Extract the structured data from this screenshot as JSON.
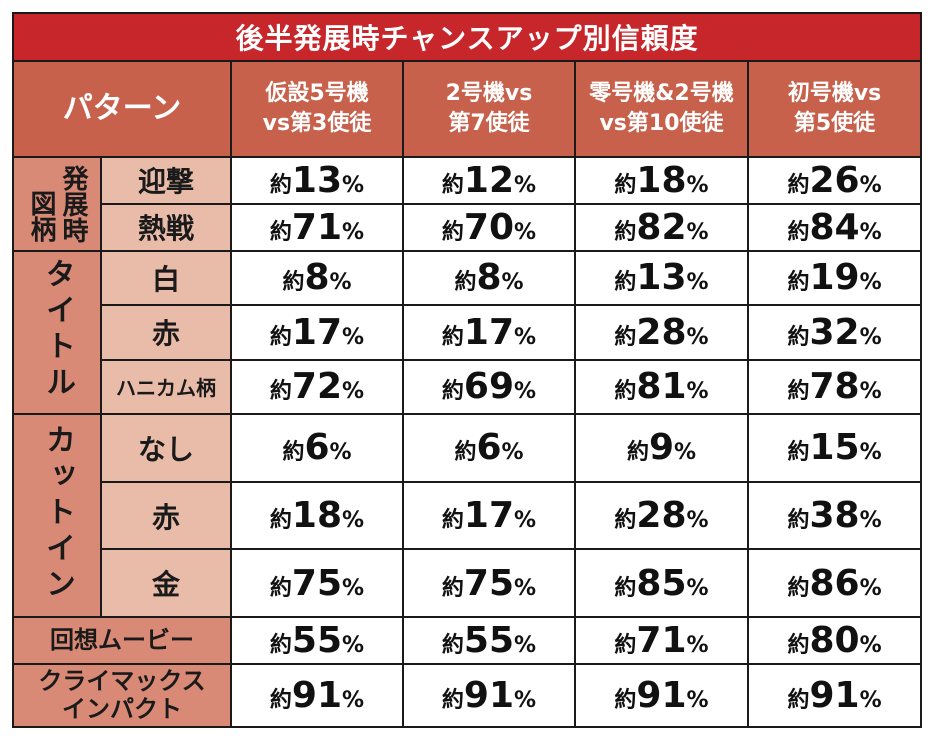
{
  "title": "後半発展時チャンスアップ別信頼度",
  "header": {
    "pattern": "パターン",
    "columns": [
      [
        "仮設5号機",
        "vs第3使徒"
      ],
      [
        "2号機vs",
        "第7使徒"
      ],
      [
        "零号機&2号機",
        "vs第10使徒"
      ],
      [
        "初号機vs",
        "第5使徒"
      ]
    ]
  },
  "groups": {
    "zugara_left": "図柄",
    "zugara_right": "発展時",
    "title": "タイトル",
    "cutin": "カットイン"
  },
  "rows": [
    {
      "label": "迎撃",
      "values": [
        "13",
        "12",
        "18",
        "26"
      ]
    },
    {
      "label": "熱戦",
      "values": [
        "71",
        "70",
        "82",
        "84"
      ]
    },
    {
      "label": "白",
      "values": [
        "8",
        "8",
        "13",
        "19"
      ]
    },
    {
      "label": "赤",
      "values": [
        "17",
        "17",
        "28",
        "32"
      ]
    },
    {
      "label": "ハニカム柄",
      "values": [
        "72",
        "69",
        "81",
        "78"
      ]
    },
    {
      "label": "なし",
      "values": [
        "6",
        "6",
        "9",
        "15"
      ]
    },
    {
      "label": "赤",
      "values": [
        "18",
        "17",
        "28",
        "38"
      ]
    },
    {
      "label": "金",
      "values": [
        "75",
        "75",
        "85",
        "86"
      ]
    },
    {
      "label": "回想ムービー",
      "values": [
        "55",
        "55",
        "71",
        "80"
      ]
    },
    {
      "label_lines": [
        "クライマックス",
        "インパクト"
      ],
      "values": [
        "91",
        "91",
        "91",
        "91"
      ]
    }
  ],
  "prefix": "約",
  "suffix": "%"
}
